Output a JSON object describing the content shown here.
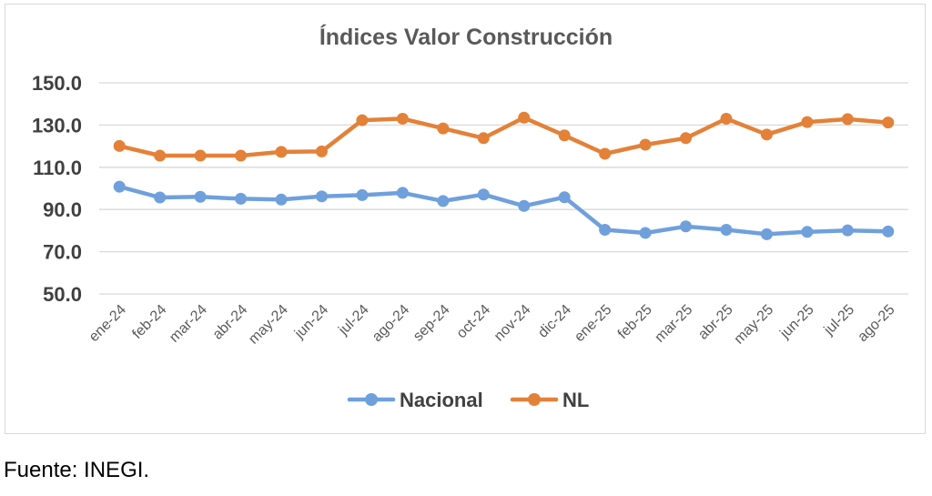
{
  "chart_data": {
    "type": "line",
    "title": "Índices Valor Construcción",
    "categories": [
      "ene-24",
      "feb-24",
      "mar-24",
      "abr-24",
      "may-24",
      "jun-24",
      "jul-24",
      "ago-24",
      "sep-24",
      "oct-24",
      "nov-24",
      "dic-24",
      "ene-25",
      "feb-25",
      "mar-25",
      "abr-25",
      "may-25",
      "jun-25",
      "jul-25",
      "ago-25"
    ],
    "ylim": [
      50,
      150
    ],
    "yticks": [
      "150.0",
      "130.0",
      "110.0",
      "90.0",
      "70.0",
      "50.0"
    ],
    "ytick_values": [
      150,
      130,
      110,
      90,
      70,
      50
    ],
    "grid": true,
    "legend_position": "bottom",
    "series": [
      {
        "name": "Nacional",
        "color": "#6fa0dc",
        "values": [
          100.8,
          95.7,
          96.0,
          95.1,
          94.7,
          96.2,
          96.8,
          97.9,
          94.0,
          97.1,
          91.7,
          95.8,
          80.4,
          78.9,
          82.0,
          80.4,
          78.3,
          79.4,
          80.1,
          79.6
        ]
      },
      {
        "name": "NL",
        "color": "#e48138",
        "values": [
          120.1,
          115.5,
          115.5,
          115.5,
          117.3,
          117.5,
          132.3,
          133.0,
          128.4,
          123.8,
          133.5,
          125.1,
          116.4,
          120.7,
          123.8,
          133.0,
          125.5,
          131.4,
          132.8,
          131.2
        ]
      }
    ]
  },
  "source_note": "Fuente: INEGI."
}
